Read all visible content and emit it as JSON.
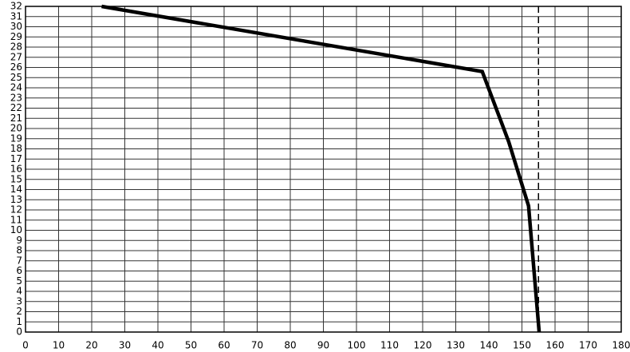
{
  "chart_data": {
    "type": "line",
    "x": [
      23,
      138,
      146,
      152,
      155.2
    ],
    "series": [
      {
        "color": "#000000",
        "values": [
          32,
          25.6,
          18.7,
          12.4,
          0
        ]
      }
    ],
    "xlim": [
      0,
      180
    ],
    "xticks": [
      0,
      10,
      20,
      30,
      40,
      50,
      60,
      70,
      80,
      90,
      100,
      110,
      120,
      130,
      140,
      150,
      160,
      170,
      180
    ],
    "ylim": [
      0,
      32
    ],
    "yticks": [
      0,
      1,
      2,
      3,
      4,
      5,
      6,
      7,
      8,
      9,
      10,
      11,
      12,
      13,
      14,
      15,
      16,
      17,
      18,
      19,
      20,
      21,
      22,
      23,
      24,
      25,
      26,
      27,
      28,
      29,
      30,
      31,
      32
    ],
    "grid": true,
    "vline": {
      "x": 155,
      "color": "#000000",
      "dashed": true
    }
  }
}
